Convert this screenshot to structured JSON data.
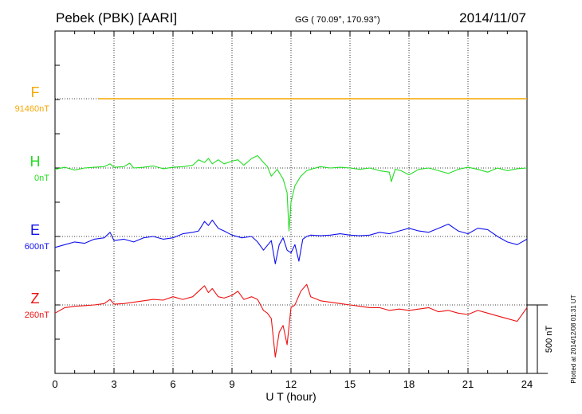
{
  "header": {
    "station": "Pebek (PBK)  [AARI]",
    "coords": "GG ( 70.09°, 170.93°)",
    "date": "2014/11/07"
  },
  "footer": {
    "plotted": "Plotted at 2014/12/08 01:31  UT"
  },
  "chart_data": {
    "type": "line",
    "xlabel": "U T (hour)",
    "xlim": [
      0,
      24
    ],
    "xticks": [
      "0",
      "3",
      "6",
      "9",
      "12",
      "15",
      "18",
      "21",
      "24"
    ],
    "scale_bar": {
      "label": "500 nT",
      "value_nT": 500
    },
    "grid": true,
    "series": [
      {
        "name": "F",
        "baseline_label": "91460nT",
        "color": "#f5a800",
        "x": [
          2.2,
          24
        ],
        "y": [
          0,
          0
        ]
      },
      {
        "name": "H",
        "baseline_label": "0nT",
        "color": "#22dd22",
        "x": [
          0,
          0.5,
          1,
          1.5,
          2,
          2.5,
          2.8,
          3,
          3.5,
          3.8,
          4,
          4.5,
          5,
          5.5,
          6,
          6.5,
          7,
          7.3,
          7.6,
          7.8,
          8,
          8.3,
          8.6,
          9,
          9.3,
          9.6,
          10,
          10.3,
          10.6,
          10.8,
          11,
          11.3,
          11.6,
          11.8,
          11.9,
          12,
          12.2,
          12.5,
          12.8,
          13,
          13.5,
          14,
          14.5,
          15,
          15.5,
          16,
          16.5,
          17,
          17.1,
          17.3,
          17.6,
          18,
          18.5,
          19,
          19.5,
          20,
          20.5,
          21,
          21.5,
          22,
          22.5,
          23,
          23.5,
          24
        ],
        "y": [
          -10,
          5,
          -15,
          0,
          5,
          10,
          30,
          5,
          10,
          35,
          0,
          5,
          15,
          -5,
          5,
          10,
          20,
          60,
          40,
          70,
          30,
          60,
          30,
          50,
          60,
          20,
          70,
          90,
          40,
          10,
          -60,
          -10,
          -80,
          -180,
          -460,
          -250,
          -130,
          -60,
          -20,
          -10,
          10,
          0,
          5,
          0,
          -10,
          0,
          -20,
          -30,
          -100,
          -10,
          -20,
          -50,
          -10,
          0,
          -20,
          -40,
          -10,
          5,
          -10,
          -30,
          0,
          -20,
          -5,
          0
        ]
      },
      {
        "name": "E",
        "baseline_label": "600nT",
        "color": "#1010ee",
        "x": [
          0,
          0.5,
          1,
          1.5,
          2,
          2.5,
          2.8,
          3,
          3.5,
          4,
          4.5,
          5,
          5.5,
          6,
          6.5,
          7,
          7.3,
          7.6,
          7.8,
          8,
          8.3,
          8.6,
          9,
          9.5,
          10,
          10.3,
          10.6,
          11,
          11.2,
          11.4,
          11.6,
          11.8,
          12,
          12.2,
          12.4,
          12.6,
          12.8,
          13,
          13.5,
          14,
          14.5,
          15,
          15.5,
          16,
          16.5,
          17,
          17.5,
          18,
          18.5,
          19,
          19.5,
          20,
          20.5,
          21,
          21.5,
          22,
          22.5,
          23,
          23.5,
          24
        ],
        "y": [
          -80,
          -60,
          -40,
          -50,
          -20,
          -10,
          30,
          -30,
          -20,
          -40,
          -10,
          0,
          -20,
          -10,
          20,
          30,
          40,
          110,
          80,
          120,
          60,
          40,
          10,
          -10,
          0,
          -40,
          -100,
          -30,
          -200,
          -60,
          -10,
          -100,
          -120,
          -60,
          -180,
          -20,
          0,
          10,
          5,
          10,
          20,
          10,
          5,
          10,
          30,
          20,
          40,
          60,
          40,
          30,
          60,
          90,
          40,
          20,
          60,
          50,
          0,
          -40,
          -60,
          -20
        ]
      },
      {
        "name": "Z",
        "baseline_label": "260nT",
        "color": "#ee1111",
        "x": [
          0,
          0.5,
          1,
          1.5,
          2,
          2.5,
          2.8,
          3,
          3.5,
          4,
          4.5,
          5,
          5.5,
          6,
          6.5,
          7,
          7.3,
          7.6,
          7.8,
          8,
          8.3,
          8.6,
          9,
          9.3,
          9.6,
          10,
          10.3,
          10.6,
          10.8,
          11,
          11.2,
          11.4,
          11.6,
          11.8,
          12,
          12.2,
          12.5,
          12.8,
          13,
          13.5,
          14,
          14.5,
          15,
          15.5,
          16,
          16.5,
          17,
          17.5,
          18,
          18.5,
          19,
          19.5,
          20,
          20.5,
          21,
          21.5,
          22,
          22.5,
          23,
          23.5,
          24
        ],
        "y": [
          -60,
          -20,
          -10,
          -5,
          0,
          10,
          40,
          5,
          10,
          20,
          30,
          40,
          35,
          60,
          40,
          60,
          100,
          140,
          90,
          120,
          60,
          50,
          70,
          100,
          40,
          60,
          40,
          -40,
          -60,
          -100,
          -380,
          -200,
          -150,
          -290,
          -20,
          0,
          100,
          150,
          60,
          30,
          20,
          10,
          0,
          -10,
          -20,
          -20,
          -40,
          -30,
          -40,
          -30,
          -20,
          -50,
          -40,
          -60,
          -70,
          -40,
          -60,
          -80,
          -100,
          -120,
          -20
        ]
      }
    ]
  }
}
